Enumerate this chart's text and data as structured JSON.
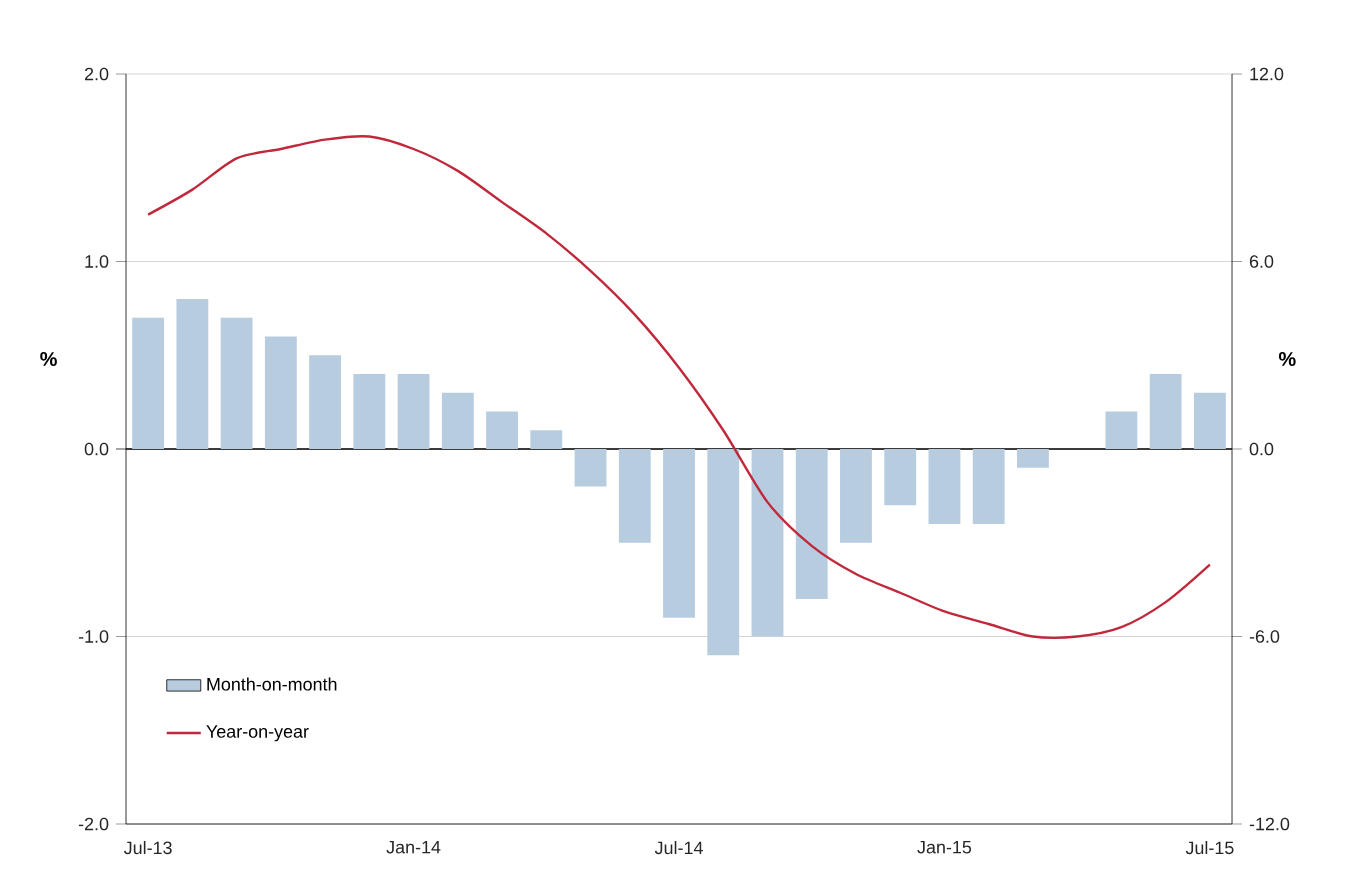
{
  "chart_data": {
    "type": "bar",
    "categories": [
      "Jul-13",
      null,
      null,
      null,
      null,
      null,
      "Jan-14",
      null,
      null,
      null,
      null,
      null,
      "Jul-14",
      null,
      null,
      null,
      null,
      null,
      "Jan-15",
      null,
      null,
      null,
      null,
      null,
      "Jul-15"
    ],
    "series": [
      {
        "name": "Month-on-month",
        "color": "#b8cce0",
        "values": [
          0.7,
          0.8,
          0.7,
          0.6,
          0.5,
          0.4,
          0.4,
          0.3,
          0.2,
          0.1,
          -0.2,
          -0.5,
          -0.9,
          -1.1,
          -1.0,
          -0.8,
          -0.5,
          -0.3,
          -0.4,
          -0.4,
          -0.1,
          0,
          0.2,
          0.4,
          0.3
        ]
      },
      {
        "name": "Year-on-year",
        "type": "line",
        "axis": "y2",
        "color": "#c0283c",
        "values": [
          7.5,
          8.3,
          9.3,
          9.6,
          9.9,
          10.0,
          9.6,
          8.9,
          7.9,
          6.9,
          5.7,
          4.3,
          2.6,
          0.6,
          -1.7,
          -3.1,
          -4.0,
          -4.6,
          -5.2,
          -5.6,
          -6.0,
          -6.0,
          -5.7,
          -4.9,
          -3.7
        ]
      }
    ],
    "ylabel": "%",
    "y2label": "%",
    "ylim": [
      -2,
      2
    ],
    "yticks": [
      {
        "value": -2,
        "label": "-2.0"
      },
      {
        "value": -1,
        "label": "-1.0"
      },
      {
        "value": 0,
        "label": "0.0"
      },
      {
        "value": 1,
        "label": "1.0"
      },
      {
        "value": 2,
        "label": "2.0"
      }
    ],
    "y2lim": [
      -12,
      12
    ],
    "y2ticks": [
      {
        "value": -12,
        "label": "-12.0"
      },
      {
        "value": -6,
        "label": "-6.0"
      },
      {
        "value": 0,
        "label": "0.0"
      },
      {
        "value": 6,
        "label": "6.0"
      },
      {
        "value": 12,
        "label": "12.0"
      }
    ],
    "grid": "y",
    "legend": "bottom left"
  }
}
